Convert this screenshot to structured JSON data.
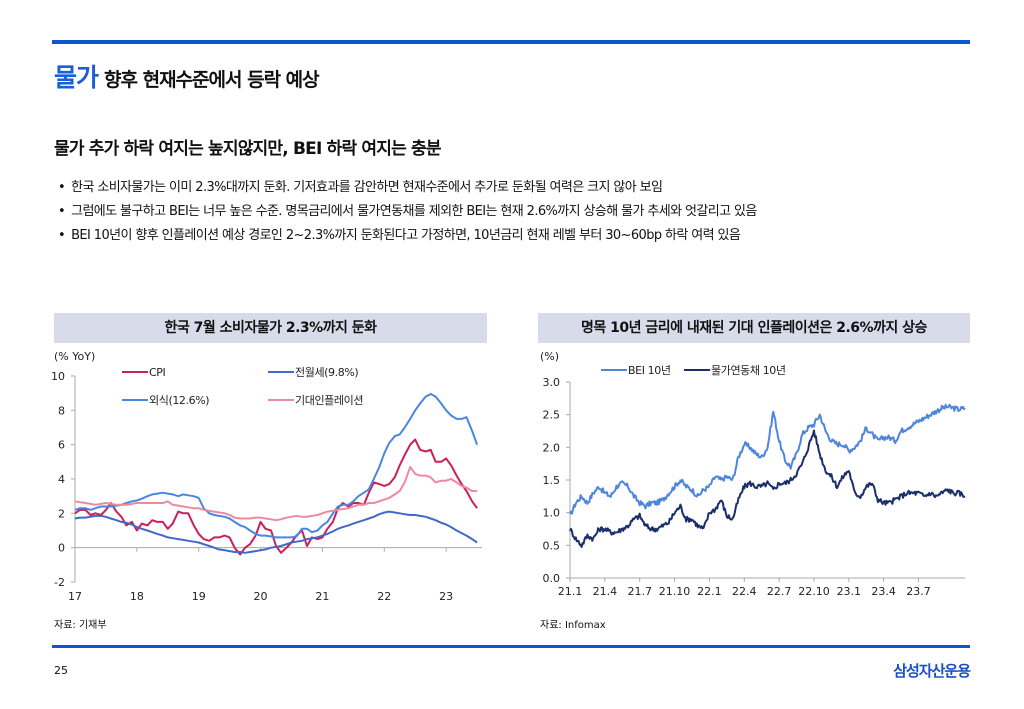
{
  "header": {
    "title_accent": "물가",
    "title_rest": "향후 현재수준에서 등락 예상",
    "subtitle": "물가 추가 하락 여지는 높지않지만, BEI 하락 여지는 충분"
  },
  "bullets": [
    "한국 소비자물가는 이미 2.3%대까지 둔화. 기저효과를 감안하면 현재수준에서 추가로 둔화될 여력은 크지 않아 보임",
    "그럼에도 불구하고 BEI는 너무 높은 수준. 명목금리에서 물가연동채를 제외한 BEI는 현재 2.6%까지 상승해 물가 추세와 엇갈리고 있음",
    "BEI 10년이 향후 인플레이션 예상 경로인  2~2.3%까지 둔화된다고 가정하면, 10년금리 현재 레벨 부터 30~60bp 하락 여력 있음"
  ],
  "bullet_char": "•",
  "footer": {
    "page": "25",
    "brand": "삼성자산운용"
  },
  "chart_data": [
    {
      "type": "line",
      "title": "한국 7월 소비자물가 2.3%까지 둔화",
      "ylabel": "(% YoY)",
      "xlabel": "",
      "ylim": [
        -2,
        10
      ],
      "yticks": [
        -2,
        0,
        2,
        4,
        6,
        8,
        10
      ],
      "xlim": [
        17,
        23.58
      ],
      "xticks": [
        "17",
        "18",
        "19",
        "20",
        "21",
        "22",
        "23"
      ],
      "source": "자료: 기재부",
      "x": [
        17.0,
        17.08,
        17.17,
        17.25,
        17.33,
        17.42,
        17.5,
        17.58,
        17.67,
        17.75,
        17.83,
        17.92,
        18.0,
        18.08,
        18.17,
        18.25,
        18.33,
        18.42,
        18.5,
        18.58,
        18.67,
        18.75,
        18.83,
        18.92,
        19.0,
        19.08,
        19.17,
        19.25,
        19.33,
        19.42,
        19.5,
        19.58,
        19.67,
        19.75,
        19.83,
        19.92,
        20.0,
        20.08,
        20.17,
        20.25,
        20.33,
        20.42,
        20.5,
        20.58,
        20.67,
        20.75,
        20.83,
        20.92,
        21.0,
        21.08,
        21.17,
        21.25,
        21.33,
        21.42,
        21.5,
        21.58,
        21.67,
        21.75,
        21.83,
        21.92,
        22.0,
        22.08,
        22.17,
        22.25,
        22.33,
        22.42,
        22.5,
        22.58,
        22.67,
        22.75,
        22.83,
        22.92,
        23.0,
        23.08,
        23.17,
        23.25,
        23.33,
        23.42,
        23.5
      ],
      "series": [
        {
          "name": "CPI",
          "color": "#cc1f5a",
          "values": [
            2.0,
            2.2,
            2.2,
            1.9,
            2.0,
            1.9,
            2.2,
            2.6,
            2.1,
            1.8,
            1.3,
            1.5,
            1.0,
            1.4,
            1.3,
            1.6,
            1.5,
            1.5,
            1.1,
            1.4,
            2.1,
            2.0,
            2.0,
            1.3,
            0.8,
            0.5,
            0.4,
            0.6,
            0.6,
            0.7,
            0.6,
            0.0,
            -0.4,
            0.0,
            0.2,
            0.7,
            1.5,
            1.1,
            1.0,
            0.1,
            -0.3,
            0.0,
            0.3,
            0.7,
            1.0,
            0.1,
            0.6,
            0.5,
            0.6,
            1.1,
            1.5,
            2.3,
            2.6,
            2.4,
            2.6,
            2.6,
            2.5,
            3.2,
            3.8,
            3.7,
            3.6,
            3.7,
            4.1,
            4.8,
            5.4,
            6.0,
            6.3,
            5.7,
            5.6,
            5.7,
            5.0,
            5.0,
            5.2,
            4.8,
            4.2,
            3.7,
            3.3,
            2.7,
            2.3
          ]
        },
        {
          "name": "전월세(9.8%)",
          "color": "#4169c6",
          "values": [
            1.7,
            1.75,
            1.75,
            1.8,
            1.85,
            1.85,
            1.8,
            1.7,
            1.6,
            1.5,
            1.45,
            1.35,
            1.2,
            1.1,
            1.0,
            0.9,
            0.8,
            0.7,
            0.6,
            0.55,
            0.5,
            0.45,
            0.4,
            0.35,
            0.3,
            0.2,
            0.1,
            0.0,
            -0.1,
            -0.15,
            -0.2,
            -0.25,
            -0.25,
            -0.3,
            -0.25,
            -0.2,
            -0.15,
            -0.1,
            0.0,
            0.05,
            0.1,
            0.2,
            0.3,
            0.35,
            0.4,
            0.5,
            0.55,
            0.6,
            0.7,
            0.8,
            0.95,
            1.1,
            1.2,
            1.3,
            1.4,
            1.5,
            1.6,
            1.7,
            1.8,
            1.95,
            2.05,
            2.1,
            2.05,
            2.0,
            1.95,
            1.9,
            1.9,
            1.85,
            1.8,
            1.7,
            1.6,
            1.45,
            1.35,
            1.2,
            1.0,
            0.85,
            0.7,
            0.5,
            0.3
          ]
        },
        {
          "name": "외식(12.6%)",
          "color": "#4a86e0",
          "values": [
            2.2,
            2.3,
            2.3,
            2.2,
            2.3,
            2.4,
            2.4,
            2.4,
            2.45,
            2.5,
            2.6,
            2.7,
            2.75,
            2.85,
            3.0,
            3.1,
            3.15,
            3.2,
            3.15,
            3.1,
            3.0,
            3.1,
            3.05,
            3.0,
            2.9,
            2.3,
            2.0,
            1.9,
            1.85,
            1.8,
            1.7,
            1.5,
            1.3,
            1.2,
            1.0,
            0.8,
            0.7,
            0.7,
            0.65,
            0.6,
            0.6,
            0.6,
            0.6,
            0.65,
            1.1,
            1.1,
            0.9,
            1.0,
            1.3,
            1.5,
            2.0,
            2.4,
            2.5,
            2.5,
            2.7,
            3.0,
            3.2,
            3.4,
            4.0,
            4.7,
            5.5,
            6.1,
            6.5,
            6.6,
            7.0,
            7.5,
            8.0,
            8.4,
            8.8,
            8.95,
            8.8,
            8.4,
            8.0,
            7.7,
            7.5,
            7.5,
            7.6,
            6.8,
            6.0
          ]
        },
        {
          "name": "기대인플레이션",
          "color": "#ec8aa0",
          "values": [
            2.7,
            2.65,
            2.6,
            2.55,
            2.5,
            2.55,
            2.6,
            2.55,
            2.5,
            2.5,
            2.5,
            2.55,
            2.6,
            2.6,
            2.6,
            2.6,
            2.6,
            2.6,
            2.7,
            2.5,
            2.45,
            2.4,
            2.35,
            2.3,
            2.3,
            2.2,
            2.15,
            2.1,
            2.05,
            2.0,
            1.9,
            1.75,
            1.7,
            1.7,
            1.7,
            1.75,
            1.75,
            1.7,
            1.65,
            1.6,
            1.65,
            1.75,
            1.8,
            1.85,
            1.8,
            1.8,
            1.85,
            1.9,
            2.0,
            2.1,
            2.15,
            2.2,
            2.25,
            2.3,
            2.4,
            2.5,
            2.5,
            2.6,
            2.6,
            2.7,
            2.8,
            2.9,
            3.1,
            3.3,
            3.8,
            4.7,
            4.3,
            4.2,
            4.2,
            4.1,
            3.8,
            3.9,
            3.9,
            4.0,
            3.8,
            3.6,
            3.5,
            3.3,
            3.3
          ]
        }
      ]
    },
    {
      "type": "line",
      "title": "명목 10년 금리에 내재된 기대 인플레이션은 2.6%까지 상승",
      "ylabel": "(%)",
      "xlabel": "",
      "ylim": [
        0.0,
        3.0
      ],
      "yticks": [
        "0.0",
        "0.5",
        "1.0",
        "1.5",
        "2.0",
        "2.5",
        "3.0"
      ],
      "xticks": [
        "21.1",
        "21.4",
        "21.7",
        "21.10",
        "22.1",
        "22.4",
        "22.7",
        "22.10",
        "23.1",
        "23.4",
        "23.7"
      ],
      "xlim_months": [
        0,
        34
      ],
      "source": "자료: Infomax",
      "month_index": [
        0,
        0.5,
        1,
        1.5,
        2,
        2.5,
        3,
        3.5,
        4,
        4.5,
        5,
        5.5,
        6,
        6.5,
        7,
        7.5,
        8,
        8.5,
        9,
        9.5,
        10,
        10.5,
        11,
        11.5,
        12,
        12.5,
        13,
        13.5,
        14,
        14.5,
        15,
        15.5,
        16,
        16.5,
        17,
        17.5,
        18,
        18.5,
        19,
        19.5,
        20,
        20.5,
        21,
        21.5,
        22,
        22.5,
        23,
        23.5,
        24,
        24.5,
        25,
        25.5,
        26,
        26.5,
        27,
        27.5,
        28,
        28.5,
        29,
        29.5,
        30,
        30.5,
        31,
        31.5,
        32,
        32.5,
        33,
        33.5,
        34
      ],
      "series": [
        {
          "name": "BEI 10년",
          "color": "#4f86dc",
          "values": [
            0.95,
            1.15,
            1.25,
            1.15,
            1.3,
            1.4,
            1.3,
            1.25,
            1.4,
            1.45,
            1.4,
            1.25,
            1.15,
            1.1,
            1.15,
            1.15,
            1.2,
            1.3,
            1.4,
            1.5,
            1.4,
            1.35,
            1.25,
            1.35,
            1.4,
            1.55,
            1.5,
            1.55,
            1.5,
            1.85,
            2.05,
            2.0,
            1.9,
            1.85,
            2.0,
            2.55,
            2.1,
            1.8,
            1.7,
            1.9,
            2.2,
            2.3,
            2.35,
            2.5,
            2.25,
            2.1,
            2.05,
            2.05,
            1.95,
            2.0,
            2.1,
            2.3,
            2.2,
            2.1,
            2.15,
            2.15,
            2.1,
            2.25,
            2.3,
            2.35,
            2.4,
            2.45,
            2.5,
            2.55,
            2.6,
            2.62,
            2.6,
            2.58,
            2.6
          ]
        },
        {
          "name": "물가연동채 10년",
          "color": "#1b2f6b",
          "values": [
            0.75,
            0.6,
            0.5,
            0.65,
            0.6,
            0.75,
            0.75,
            0.7,
            0.7,
            0.75,
            0.8,
            0.9,
            0.95,
            0.8,
            0.75,
            0.75,
            0.8,
            0.85,
            1.0,
            1.1,
            0.9,
            0.9,
            0.8,
            0.75,
            1.0,
            1.05,
            1.2,
            0.95,
            0.9,
            1.2,
            1.4,
            1.45,
            1.4,
            1.4,
            1.45,
            1.35,
            1.45,
            1.45,
            1.5,
            1.6,
            1.75,
            2.0,
            2.25,
            1.9,
            1.65,
            1.55,
            1.4,
            1.55,
            1.65,
            1.3,
            1.25,
            1.4,
            1.45,
            1.2,
            1.15,
            1.15,
            1.2,
            1.25,
            1.3,
            1.3,
            1.3,
            1.25,
            1.3,
            1.25,
            1.3,
            1.35,
            1.3,
            1.3,
            1.25
          ]
        }
      ]
    }
  ]
}
